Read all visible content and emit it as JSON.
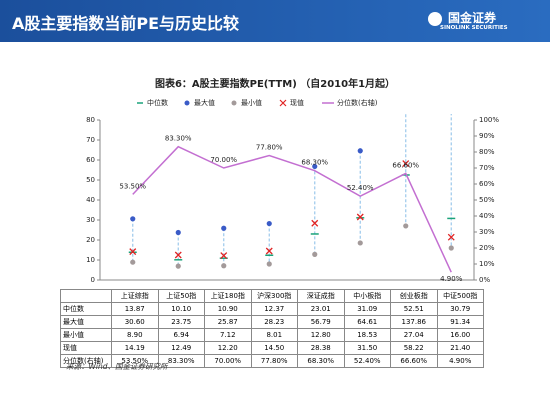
{
  "header": {
    "title": "A股主要指数当前PE与历史比较",
    "logo_name": "国金证券",
    "logo_sub": "SINOLINK SECURITIES"
  },
  "chart_data": {
    "type": "combo",
    "title": "图表6：A股主要指数PE(TTM) （自2010年1月起）",
    "categories": [
      "上证综指",
      "上证50指",
      "上证180指",
      "沪深300指",
      "深证成指",
      "中小板指",
      "创业板指",
      "中证500指"
    ],
    "series": [
      {
        "name": "中位数",
        "color": "#1aa37a",
        "marker": "dash",
        "values": [
          13.87,
          10.1,
          10.9,
          12.37,
          23.01,
          31.09,
          52.51,
          30.79
        ],
        "value_labels": [
          "13.87",
          "10.10",
          "10.90",
          "12.37",
          "23.01",
          "31.09",
          "52.51",
          "30.79"
        ]
      },
      {
        "name": "最大值",
        "color": "#3a5bc7",
        "marker": "circle",
        "values": [
          30.6,
          23.75,
          25.87,
          28.23,
          56.79,
          64.61,
          137.86,
          91.34
        ],
        "value_labels": [
          "30.60",
          "23.75",
          "25.87",
          "28.23",
          "56.79",
          "64.61",
          "137.86",
          "91.34"
        ]
      },
      {
        "name": "最小值",
        "color": "#a39a9a",
        "marker": "circle",
        "values": [
          8.9,
          6.94,
          7.12,
          8.01,
          12.8,
          18.53,
          27.04,
          16.0
        ],
        "value_labels": [
          "8.90",
          "6.94",
          "7.12",
          "8.01",
          "12.80",
          "18.53",
          "27.04",
          "16.00"
        ]
      },
      {
        "name": "现值",
        "color": "#e02424",
        "marker": "cross",
        "values": [
          14.19,
          12.49,
          12.2,
          14.5,
          28.38,
          31.5,
          58.22,
          21.4
        ],
        "value_labels": [
          "14.19",
          "12.49",
          "12.20",
          "14.50",
          "28.38",
          "31.50",
          "58.22",
          "21.40"
        ]
      },
      {
        "name": "分位数(右轴)",
        "color": "#c36fd1",
        "marker": "line",
        "axis": "y2",
        "values": [
          53.5,
          83.3,
          70.0,
          77.8,
          68.3,
          52.4,
          66.6,
          4.9
        ],
        "value_labels": [
          "53.50%",
          "83.30%",
          "70.00%",
          "77.80%",
          "68.30%",
          "52.40%",
          "66.60%",
          "4.90%"
        ]
      }
    ],
    "range_color": "#9cc8ec",
    "ylim": [
      0,
      80
    ],
    "yticks": [
      0,
      10,
      20,
      30,
      40,
      50,
      60,
      70,
      80
    ],
    "y2lim": [
      0,
      100
    ],
    "y2ticks": [
      {
        "value": 0,
        "label": "0%"
      },
      {
        "value": 10,
        "label": "10%"
      },
      {
        "value": 20,
        "label": "20%"
      },
      {
        "value": 30,
        "label": "30%"
      },
      {
        "value": 40,
        "label": "40%"
      },
      {
        "value": 50,
        "label": "50%"
      },
      {
        "value": 60,
        "label": "60%"
      },
      {
        "value": 70,
        "label": "70%"
      },
      {
        "value": 80,
        "label": "80%"
      },
      {
        "value": 90,
        "label": "90%"
      },
      {
        "value": 100,
        "label": "100%"
      }
    ],
    "source": "来源：Wind、国金证券研究所"
  }
}
